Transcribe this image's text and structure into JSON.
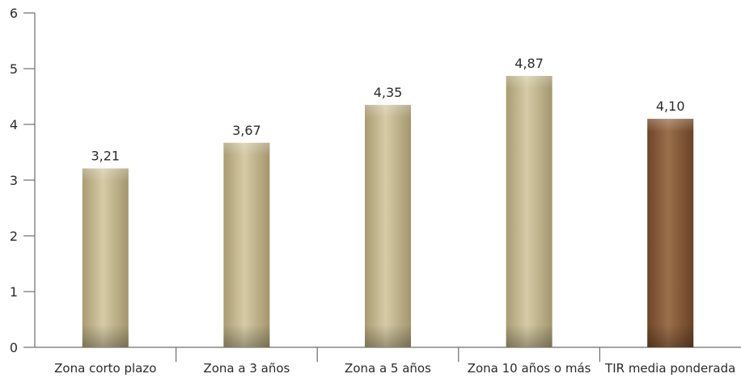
{
  "chart_data": {
    "type": "bar",
    "title": "",
    "xlabel": "",
    "ylabel": "",
    "ylim": [
      0,
      6
    ],
    "yticks": [
      0,
      1,
      2,
      3,
      4,
      5,
      6
    ],
    "grid": false,
    "legend": "none",
    "categories": [
      "Zona corto plazo",
      "Zona a 3 años",
      "Zona a 5 años",
      "Zona 10 años o más",
      "TIR media ponderada"
    ],
    "values": [
      3.21,
      3.67,
      4.35,
      4.87,
      4.1
    ],
    "value_labels": [
      "3,21",
      "3,67",
      "4,35",
      "4,87",
      "4,10"
    ],
    "colors": {
      "standard_bar": "#c8bc94",
      "highlight_bar": "#8a5e3c"
    },
    "highlight_index": 4
  }
}
